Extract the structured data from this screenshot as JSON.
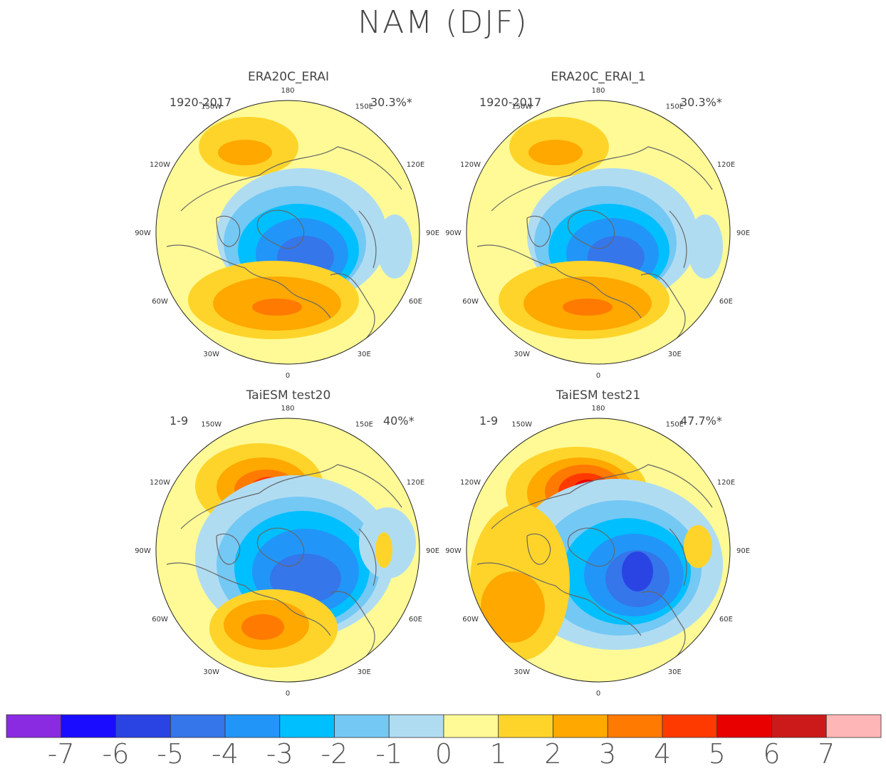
{
  "title": "NAM (DJF)",
  "panels": [
    {
      "title": "ERA20C_ERAI",
      "period": "1920-2017",
      "variance": "30.3%*"
    },
    {
      "title": "ERA20C_ERAI_1",
      "period": "1920-2017",
      "variance": "30.3%*"
    },
    {
      "title": "TaiESM test20",
      "period": "1-9",
      "variance": "40%*"
    },
    {
      "title": "TaiESM test21",
      "period": "1-9",
      "variance": "47.7%*"
    }
  ],
  "lon_labels": [
    "180",
    "150E",
    "120E",
    "90E",
    "60E",
    "30E",
    "0",
    "30W",
    "60W",
    "90W",
    "120W",
    "150W"
  ],
  "colorbar": {
    "labels": [
      "-7",
      "-6",
      "-5",
      "-4",
      "-3",
      "-2",
      "-1",
      "0",
      "1",
      "2",
      "3",
      "4",
      "5",
      "6",
      "7"
    ],
    "colors": [
      "#8a2be2",
      "#1a0dff",
      "#2a44e4",
      "#3576ea",
      "#2196f8",
      "#00bfff",
      "#74c8f4",
      "#b0dcf2",
      "#fffa96",
      "#ffd42a",
      "#ffa800",
      "#ff7a00",
      "#ff3a00",
      "#e80000",
      "#cc1a1a",
      "#ffb6b6"
    ]
  }
}
